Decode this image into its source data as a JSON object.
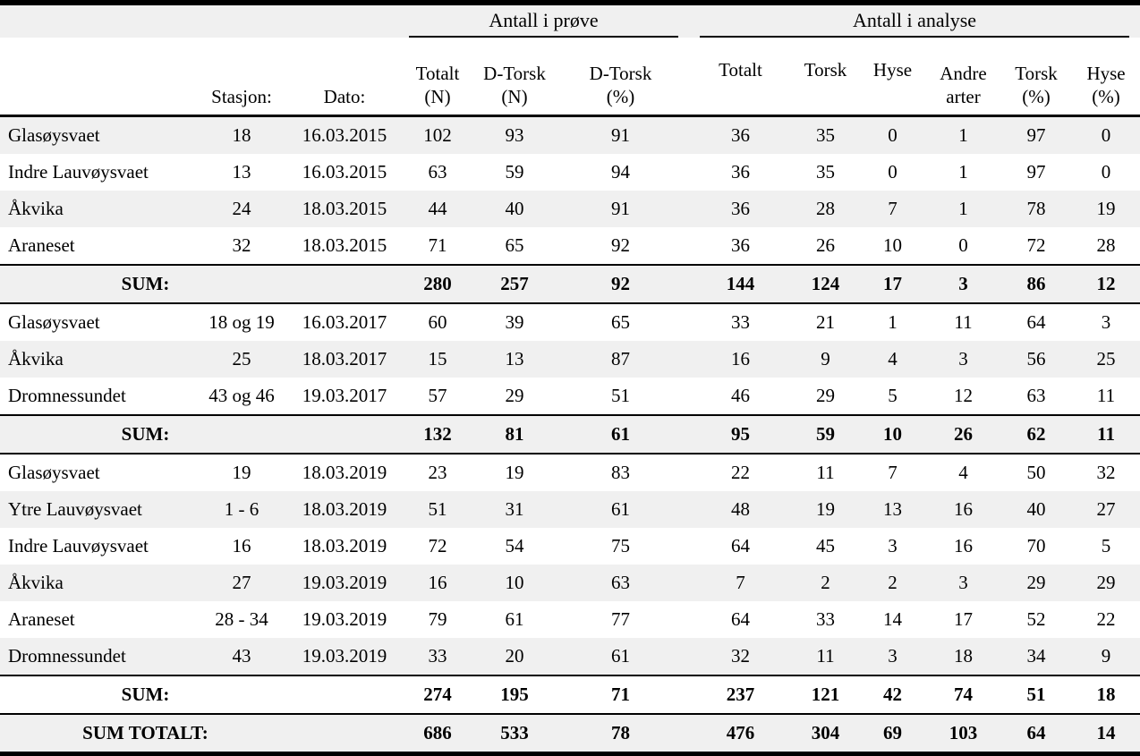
{
  "table": {
    "group_headers": {
      "prove": "Antall i prøve",
      "analyse": "Antall i analyse"
    },
    "columns": [
      {
        "key": "station",
        "label": ""
      },
      {
        "key": "stasjon",
        "label": "Stasjon:"
      },
      {
        "key": "dato",
        "label": "Dato:"
      },
      {
        "key": "totalt_n",
        "label": "Totalt\n(N)"
      },
      {
        "key": "dtorsk_n",
        "label": "D-Torsk\n(N)"
      },
      {
        "key": "dtorsk_pct",
        "label": "D-Torsk\n(%)"
      },
      {
        "key": "totalt",
        "label": "Totalt"
      },
      {
        "key": "torsk",
        "label": "Torsk"
      },
      {
        "key": "hyse",
        "label": "Hyse"
      },
      {
        "key": "andre_arter",
        "label": "Andre\narter"
      },
      {
        "key": "torsk_pct",
        "label": "Torsk\n(%)"
      },
      {
        "key": "hyse_pct",
        "label": "Hyse\n(%)"
      }
    ],
    "rows": [
      {
        "type": "data",
        "shade": true,
        "cells": [
          "Glasøysvaet",
          "18",
          "16.03.2015",
          "102",
          "93",
          "91",
          "36",
          "35",
          "0",
          "1",
          "97",
          "0"
        ]
      },
      {
        "type": "data",
        "shade": false,
        "cells": [
          "Indre Lauvøysvaet",
          "13",
          "16.03.2015",
          "63",
          "59",
          "94",
          "36",
          "35",
          "0",
          "1",
          "97",
          "0"
        ]
      },
      {
        "type": "data",
        "shade": true,
        "cells": [
          "Åkvika",
          "24",
          "18.03.2015",
          "44",
          "40",
          "91",
          "36",
          "28",
          "7",
          "1",
          "78",
          "19"
        ]
      },
      {
        "type": "data",
        "shade": false,
        "cells": [
          "Araneset",
          "32",
          "18.03.2015",
          "71",
          "65",
          "92",
          "36",
          "26",
          "10",
          "0",
          "72",
          "28"
        ]
      },
      {
        "type": "sum",
        "shade": true,
        "label": "SUM:",
        "cells": [
          "280",
          "257",
          "92",
          "144",
          "124",
          "17",
          "3",
          "86",
          "12"
        ]
      },
      {
        "type": "data",
        "shade": false,
        "cells": [
          "Glasøysvaet",
          "18 og 19",
          "16.03.2017",
          "60",
          "39",
          "65",
          "33",
          "21",
          "1",
          "11",
          "64",
          "3"
        ]
      },
      {
        "type": "data",
        "shade": true,
        "cells": [
          "Åkvika",
          "25",
          "18.03.2017",
          "15",
          "13",
          "87",
          "16",
          "9",
          "4",
          "3",
          "56",
          "25"
        ]
      },
      {
        "type": "data",
        "shade": false,
        "cells": [
          "Dromnessundet",
          "43 og 46",
          "19.03.2017",
          "57",
          "29",
          "51",
          "46",
          "29",
          "5",
          "12",
          "63",
          "11"
        ]
      },
      {
        "type": "sum",
        "shade": true,
        "label": "SUM:",
        "cells": [
          "132",
          "81",
          "61",
          "95",
          "59",
          "10",
          "26",
          "62",
          "11"
        ]
      },
      {
        "type": "data",
        "shade": false,
        "cells": [
          "Glasøysvaet",
          "19",
          "18.03.2019",
          "23",
          "19",
          "83",
          "22",
          "11",
          "7",
          "4",
          "50",
          "32"
        ]
      },
      {
        "type": "data",
        "shade": true,
        "cells": [
          "Ytre Lauvøysvaet",
          "1 - 6",
          "18.03.2019",
          "51",
          "31",
          "61",
          "48",
          "19",
          "13",
          "16",
          "40",
          "27"
        ]
      },
      {
        "type": "data",
        "shade": false,
        "cells": [
          "Indre Lauvøysvaet",
          "16",
          "18.03.2019",
          "72",
          "54",
          "75",
          "64",
          "45",
          "3",
          "16",
          "70",
          "5"
        ]
      },
      {
        "type": "data",
        "shade": true,
        "cells": [
          "Åkvika",
          "27",
          "19.03.2019",
          "16",
          "10",
          "63",
          "7",
          "2",
          "2",
          "3",
          "29",
          "29"
        ]
      },
      {
        "type": "data",
        "shade": false,
        "cells": [
          "Araneset",
          "28 - 34",
          "19.03.2019",
          "79",
          "61",
          "77",
          "64",
          "33",
          "14",
          "17",
          "52",
          "22"
        ]
      },
      {
        "type": "data",
        "shade": true,
        "cells": [
          "Dromnessundet",
          "43",
          "19.03.2019",
          "33",
          "20",
          "61",
          "32",
          "11",
          "3",
          "18",
          "34",
          "9"
        ]
      },
      {
        "type": "sum",
        "shade": false,
        "label": "SUM:",
        "cells": [
          "274",
          "195",
          "71",
          "237",
          "121",
          "42",
          "74",
          "51",
          "18"
        ]
      },
      {
        "type": "sum_total",
        "shade": true,
        "label": "SUM TOTALT:",
        "cells": [
          "686",
          "533",
          "78",
          "476",
          "304",
          "69",
          "103",
          "64",
          "14"
        ]
      }
    ],
    "colors": {
      "shade": "#f0f0f0",
      "line": "#000000",
      "background": "#ffffff"
    }
  }
}
